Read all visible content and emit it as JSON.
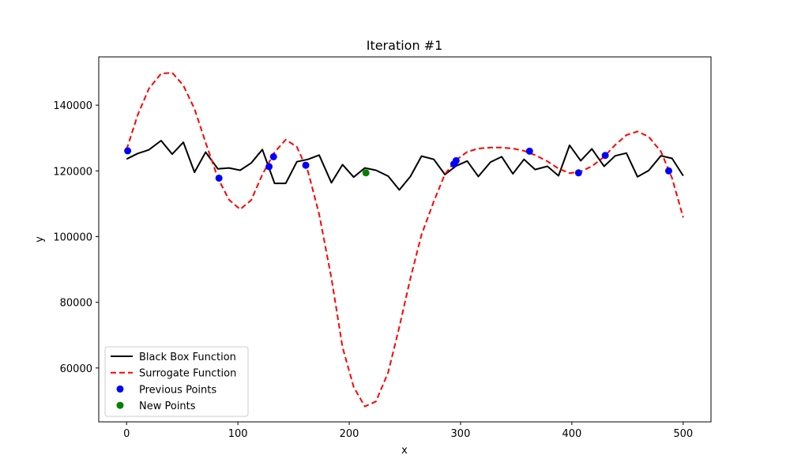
{
  "chart_data": {
    "type": "line",
    "title": "Iteration #1",
    "xlabel": "x",
    "ylabel": "y",
    "xlim": [
      -25,
      525
    ],
    "ylim": [
      43600,
      154700
    ],
    "x_ticks": [
      0,
      100,
      200,
      300,
      400,
      500
    ],
    "y_ticks": [
      60000,
      80000,
      100000,
      120000,
      140000
    ],
    "grid": false,
    "legend_position": "lower-left",
    "series": [
      {
        "name": "Black Box Function",
        "kind": "line",
        "color": "#000000",
        "style": "solid",
        "x": [
          0,
          10,
          20,
          31,
          41,
          51,
          61,
          71,
          82,
          92,
          102,
          112,
          122,
          133,
          143,
          153,
          163,
          173,
          184,
          194,
          204,
          214,
          224,
          235,
          245,
          255,
          265,
          276,
          286,
          296,
          306,
          316,
          327,
          337,
          347,
          357,
          367,
          378,
          388,
          398,
          408,
          418,
          429,
          439,
          449,
          459,
          469,
          480,
          490,
          500
        ],
        "y": [
          123600,
          125300,
          126400,
          129200,
          125100,
          128700,
          119600,
          125700,
          120600,
          120900,
          120200,
          122400,
          126500,
          116200,
          116200,
          122800,
          123500,
          124800,
          116400,
          121900,
          118100,
          120900,
          120200,
          118400,
          114200,
          118300,
          124500,
          123500,
          118900,
          121500,
          123000,
          118300,
          122700,
          124300,
          119100,
          123500,
          120400,
          121400,
          118500,
          127800,
          123100,
          126700,
          121400,
          124600,
          125400,
          118200,
          120100,
          124600,
          123800,
          118500
        ]
      },
      {
        "name": "Surrogate Function",
        "kind": "line",
        "color": "#ff0000",
        "style": "dashed",
        "x": [
          0,
          10,
          20,
          31,
          41,
          51,
          61,
          71,
          82,
          92,
          102,
          112,
          122,
          133,
          143,
          153,
          163,
          173,
          184,
          194,
          204,
          214,
          224,
          235,
          245,
          255,
          265,
          276,
          286,
          296,
          306,
          316,
          327,
          337,
          347,
          357,
          367,
          378,
          388,
          398,
          408,
          418,
          429,
          439,
          449,
          459,
          469,
          480,
          490,
          500
        ],
        "y": [
          126500,
          137000,
          145000,
          149600,
          149900,
          146000,
          138900,
          128600,
          117800,
          111200,
          108300,
          111100,
          118900,
          125700,
          129500,
          127300,
          119800,
          106800,
          87400,
          66300,
          54200,
          48300,
          49800,
          58700,
          72500,
          87300,
          100600,
          110700,
          119000,
          123300,
          125800,
          126800,
          127100,
          127100,
          126800,
          126100,
          124800,
          122900,
          120700,
          119300,
          119800,
          121400,
          124300,
          127900,
          130900,
          132000,
          130400,
          125900,
          117800,
          105800
        ]
      },
      {
        "name": "Previous Points",
        "kind": "scatter",
        "color": "#0000ff",
        "x": [
          1,
          83,
          128,
          132,
          161,
          294,
          296,
          362,
          406,
          430,
          487
        ],
        "y": [
          126100,
          117800,
          121300,
          124300,
          121700,
          122100,
          123100,
          126000,
          119400,
          124700,
          120000
        ]
      },
      {
        "name": "New Points",
        "kind": "scatter",
        "color": "#008000",
        "x": [
          215
        ],
        "y": [
          119400
        ]
      }
    ]
  }
}
